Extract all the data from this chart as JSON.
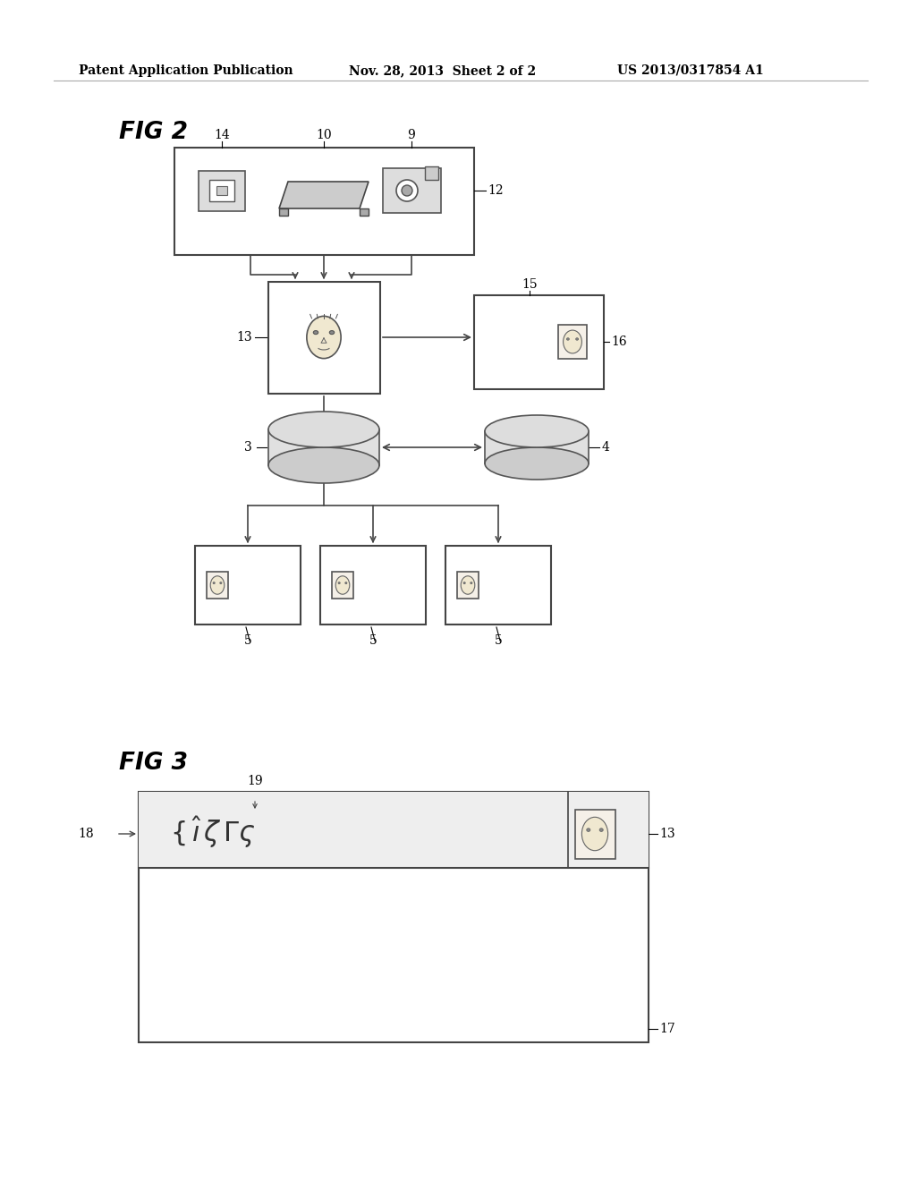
{
  "bg_color": "#ffffff",
  "title_left": "Patent Application Publication",
  "title_mid": "Nov. 28, 2013  Sheet 2 of 2",
  "title_right": "US 2013/0317854 A1",
  "fig2_label": "FIG 2",
  "fig3_label": "FIG 3",
  "line_color": "#555555",
  "box_color": "#888888",
  "text_color": "#000000"
}
